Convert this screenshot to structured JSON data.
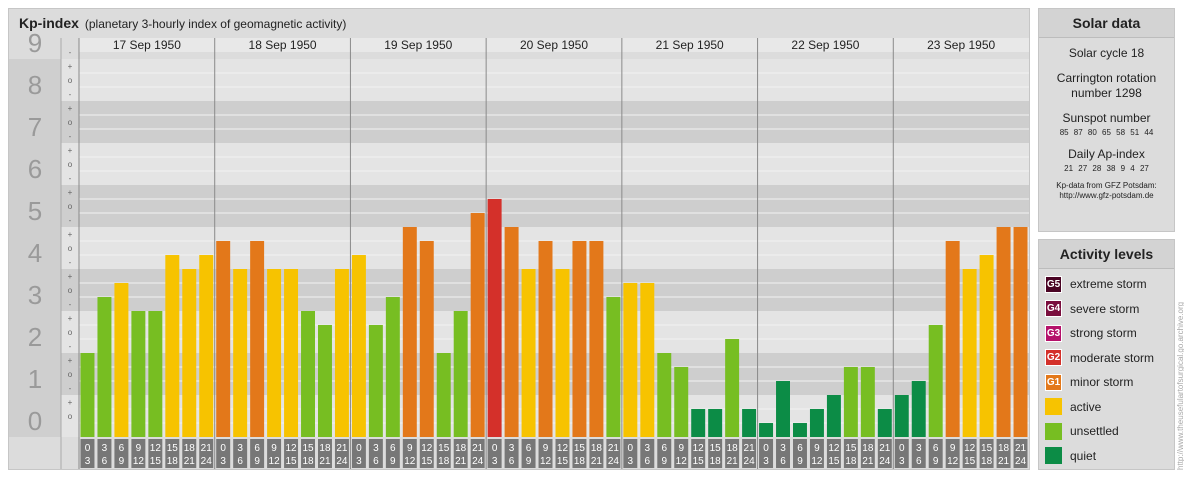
{
  "header": {
    "title": "Kp-index",
    "subtitle": "(planetary 3-hourly index of geomagnetic activity)"
  },
  "chart_data": {
    "type": "bar",
    "ylim": [
      0,
      9
    ],
    "y_ticks": [
      "0",
      "1",
      "2",
      "3",
      "4",
      "5",
      "6",
      "7",
      "8",
      "9"
    ],
    "sub_ticks": [
      "+",
      "o",
      "-"
    ],
    "days": [
      "17 Sep 1950",
      "18 Sep 1950",
      "19 Sep 1950",
      "20 Sep 1950",
      "21 Sep 1950",
      "22 Sep 1950",
      "23 Sep 1950"
    ],
    "intervals": [
      {
        "top": "0",
        "bottom": "3"
      },
      {
        "top": "3",
        "bottom": "6"
      },
      {
        "top": "6",
        "bottom": "9"
      },
      {
        "top": "9",
        "bottom": "12"
      },
      {
        "top": "12",
        "bottom": "15"
      },
      {
        "top": "15",
        "bottom": "18"
      },
      {
        "top": "18",
        "bottom": "21"
      },
      {
        "top": "21",
        "bottom": "24"
      }
    ],
    "values": [
      [
        2.0,
        3.333,
        3.667,
        3.0,
        3.0,
        4.333,
        4.0,
        4.333
      ],
      [
        4.667,
        4.0,
        4.667,
        4.0,
        4.0,
        3.0,
        2.667,
        4.0
      ],
      [
        4.333,
        2.667,
        3.333,
        5.0,
        4.667,
        2.0,
        3.0,
        5.333
      ],
      [
        5.667,
        5.0,
        4.0,
        4.667,
        4.0,
        4.667,
        4.667,
        3.333
      ],
      [
        3.667,
        3.667,
        2.0,
        1.667,
        0.667,
        0.667,
        2.333,
        0.667
      ],
      [
        0.333,
        1.333,
        0.333,
        0.667,
        1.0,
        1.667,
        1.667,
        0.667
      ],
      [
        1.0,
        1.333,
        2.667,
        4.667,
        4.0,
        4.333,
        5.0,
        5.0
      ]
    ],
    "colors": {
      "quiet": "#0c8c46",
      "unsettled": "#77be22",
      "active": "#f7c300",
      "minor": "#e3781a",
      "moderate": "#d4302a",
      "strong": "#b5116a",
      "severe": "#7a0e3e",
      "extreme": "#4a0424"
    }
  },
  "solar": {
    "title": "Solar data",
    "cycle": "Solar cycle 18",
    "carrington_1": "Carrington rotation",
    "carrington_2": "number 1298",
    "sunspot_label": "Sunspot number",
    "sunspot_values": "85  87  80  65  58  51  44",
    "ap_label": "Daily Ap-index",
    "ap_values": "21  27  28  38  9  4  27",
    "credit_1": "Kp-data from GFZ Potsdam:",
    "credit_2": "http://www.gfz-potsdam.de"
  },
  "activity": {
    "title": "Activity levels",
    "items": [
      {
        "badge": "G5",
        "label": "extreme storm",
        "color": "#4a0424"
      },
      {
        "badge": "G4",
        "label": "severe storm",
        "color": "#7a0e3e"
      },
      {
        "badge": "G3",
        "label": "strong storm",
        "color": "#b5116a"
      },
      {
        "badge": "G2",
        "label": "moderate storm",
        "color": "#d4302a"
      },
      {
        "badge": "G1",
        "label": "minor storm",
        "color": "#e3781a"
      },
      {
        "badge": "",
        "label": "active",
        "color": "#f7c300"
      },
      {
        "badge": "",
        "label": "unsettled",
        "color": "#77be22"
      },
      {
        "badge": "",
        "label": "quiet",
        "color": "#0c8c46"
      }
    ]
  },
  "watermark": "http://www.theusefulartofsurgical.go.archive.org"
}
